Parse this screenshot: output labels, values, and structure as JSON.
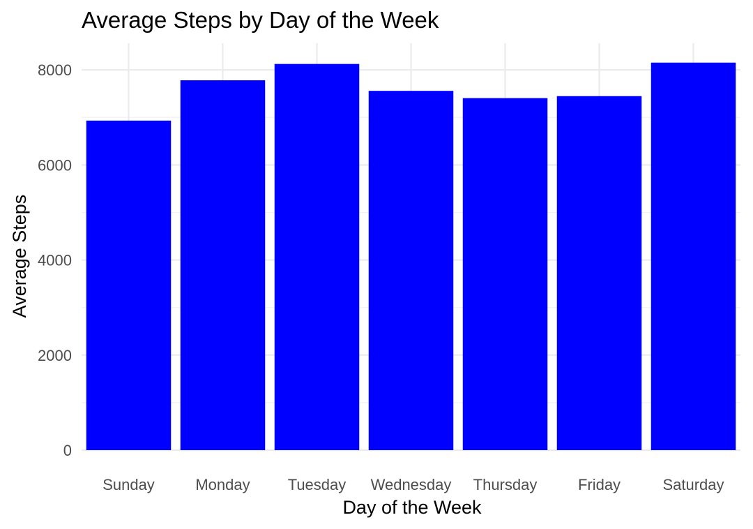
{
  "chart_data": {
    "type": "bar",
    "title": "Average Steps by Day of the Week",
    "xlabel": "Day of the Week",
    "ylabel": "Average Steps",
    "categories": [
      "Sunday",
      "Monday",
      "Tuesday",
      "Wednesday",
      "Thursday",
      "Friday",
      "Saturday"
    ],
    "values": [
      6933,
      7781,
      8125,
      7559,
      7406,
      7448,
      8153
    ],
    "ylim": [
      0,
      8560
    ],
    "yticks": [
      0,
      2000,
      4000,
      6000,
      8000
    ],
    "grid": true,
    "legend": "none",
    "bar_color": "#0000ff"
  }
}
